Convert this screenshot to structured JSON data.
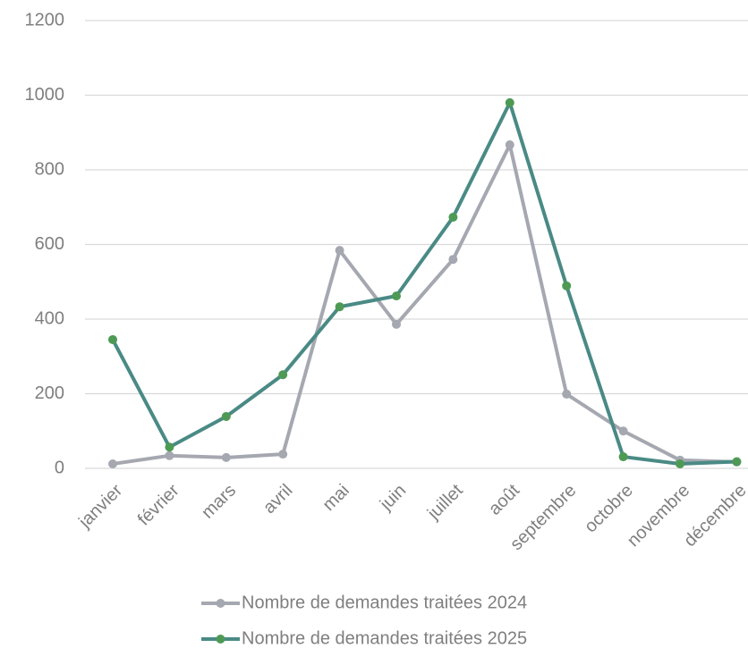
{
  "chart_data": {
    "type": "line",
    "categories": [
      "janvier",
      "février",
      "mars",
      "avril",
      "mai",
      "juin",
      "juillet",
      "août",
      "septembre",
      "octobre",
      "novembre",
      "décembre"
    ],
    "series": [
      {
        "name": "Nombre de demandes traitées 2024",
        "color": "#a5a8b0",
        "marker_color": "#a5a8b0",
        "values": [
          12,
          34,
          29,
          38,
          584,
          386,
          560,
          867,
          199,
          100,
          22,
          17
        ]
      },
      {
        "name": "Nombre de demandes traitées 2025",
        "color": "#4a8a85",
        "marker_color": "#4e9a55",
        "values": [
          345,
          57,
          139,
          251,
          433,
          462,
          673,
          980,
          489,
          31,
          12,
          18
        ]
      }
    ],
    "ylim": [
      0,
      1200
    ],
    "yticks": [
      0,
      200,
      400,
      600,
      800,
      1000,
      1200
    ],
    "grid": true,
    "legend": "bottom"
  }
}
